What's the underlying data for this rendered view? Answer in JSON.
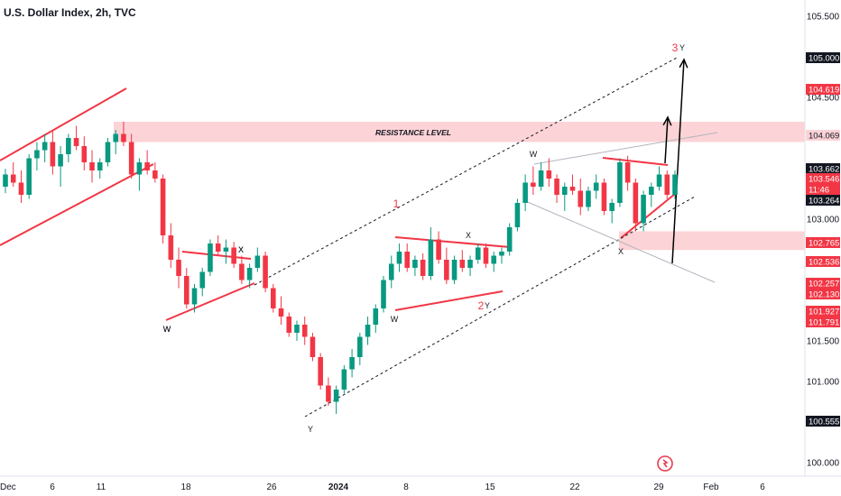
{
  "header": {
    "title": "U.S. Dollar Index, 2h, TVC"
  },
  "chart_data": {
    "type": "candlestick",
    "instrument": "U.S. Dollar Index",
    "timeframe": "2h",
    "source": "TVC",
    "ylim": [
      100.0,
      105.6
    ],
    "y_ticks": [
      "105.500",
      "104.500",
      "103.000",
      "101.500",
      "101.000",
      "100.000"
    ],
    "x_ticks": [
      "Dec",
      "6",
      "11",
      "18",
      "26",
      "2024",
      "8",
      "15",
      "22",
      "29",
      "Feb",
      "6"
    ],
    "price_labels": [
      {
        "value": "105.000",
        "style": "dark"
      },
      {
        "value": "104.619",
        "style": "red"
      },
      {
        "value": "104.069",
        "style": "pink"
      },
      {
        "value": "103.662",
        "style": "dark"
      },
      {
        "value": "103.546",
        "style": "red"
      },
      {
        "value": "11:46",
        "style": "red"
      },
      {
        "value": "103.264",
        "style": "dark"
      },
      {
        "value": "102.765",
        "style": "red"
      },
      {
        "value": "102.536",
        "style": "red"
      },
      {
        "value": "102.257",
        "style": "red"
      },
      {
        "value": "102.130",
        "style": "red"
      },
      {
        "value": "101.927",
        "style": "red"
      },
      {
        "value": "101.791",
        "style": "red"
      },
      {
        "value": "100.555",
        "style": "dark"
      }
    ],
    "zones": [
      {
        "label": "RESISTANCE LEVEL",
        "low": 103.95,
        "high": 104.2
      },
      {
        "label": "",
        "low": 102.62,
        "high": 102.85
      }
    ],
    "wave_labels": [
      "W",
      "X",
      "W",
      "X",
      "Y",
      "1",
      "W",
      "X",
      "2",
      "Y",
      "W",
      "X",
      "3",
      "Y"
    ],
    "candles": [
      [
        103.4,
        103.62,
        103.32,
        103.55
      ],
      [
        103.55,
        103.7,
        103.4,
        103.45
      ],
      [
        103.45,
        103.6,
        103.2,
        103.3
      ],
      [
        103.3,
        103.8,
        103.25,
        103.75
      ],
      [
        103.75,
        103.95,
        103.6,
        103.85
      ],
      [
        103.85,
        104.05,
        103.7,
        103.95
      ],
      [
        103.95,
        104.1,
        103.55,
        103.65
      ],
      [
        103.65,
        103.9,
        103.4,
        103.8
      ],
      [
        103.8,
        104.05,
        103.7,
        104.0
      ],
      [
        104.0,
        104.15,
        103.85,
        103.9
      ],
      [
        103.9,
        104.02,
        103.6,
        103.7
      ],
      [
        103.7,
        103.85,
        103.45,
        103.6
      ],
      [
        103.6,
        103.75,
        103.5,
        103.7
      ],
      [
        103.7,
        104.0,
        103.65,
        103.95
      ],
      [
        103.95,
        104.1,
        103.8,
        104.05
      ],
      [
        104.05,
        104.2,
        103.9,
        103.95
      ],
      [
        103.95,
        104.05,
        103.5,
        103.55
      ],
      [
        103.55,
        103.75,
        103.35,
        103.7
      ],
      [
        103.7,
        103.85,
        103.55,
        103.6
      ],
      [
        103.6,
        103.7,
        103.45,
        103.5
      ],
      [
        103.5,
        103.55,
        102.7,
        102.8
      ],
      [
        102.8,
        102.95,
        102.4,
        102.5
      ],
      [
        102.5,
        102.65,
        102.15,
        102.3
      ],
      [
        102.3,
        102.4,
        101.9,
        101.95
      ],
      [
        101.95,
        102.2,
        101.85,
        102.15
      ],
      [
        102.15,
        102.4,
        102.05,
        102.35
      ],
      [
        102.35,
        102.75,
        102.3,
        102.7
      ],
      [
        102.7,
        102.8,
        102.55,
        102.6
      ],
      [
        102.6,
        102.75,
        102.45,
        102.65
      ],
      [
        102.65,
        102.72,
        102.4,
        102.45
      ],
      [
        102.45,
        102.55,
        102.2,
        102.25
      ],
      [
        102.25,
        102.45,
        102.15,
        102.4
      ],
      [
        102.4,
        102.65,
        102.35,
        102.55
      ],
      [
        102.55,
        102.6,
        102.1,
        102.15
      ],
      [
        102.15,
        102.2,
        101.85,
        101.9
      ],
      [
        101.9,
        102.05,
        101.7,
        101.8
      ],
      [
        101.8,
        101.85,
        101.55,
        101.6
      ],
      [
        101.6,
        101.75,
        101.5,
        101.7
      ],
      [
        101.7,
        101.8,
        101.45,
        101.55
      ],
      [
        101.55,
        101.6,
        101.25,
        101.3
      ],
      [
        101.3,
        101.35,
        100.9,
        100.95
      ],
      [
        100.95,
        101.05,
        100.7,
        100.75
      ],
      [
        100.75,
        100.95,
        100.6,
        100.9
      ],
      [
        100.9,
        101.2,
        100.85,
        101.15
      ],
      [
        101.15,
        101.4,
        101.05,
        101.3
      ],
      [
        101.3,
        101.6,
        101.2,
        101.55
      ],
      [
        101.55,
        101.8,
        101.45,
        101.7
      ],
      [
        101.7,
        101.95,
        101.6,
        101.9
      ],
      [
        101.9,
        102.3,
        101.85,
        102.25
      ],
      [
        102.25,
        102.55,
        102.15,
        102.45
      ],
      [
        102.45,
        102.7,
        102.35,
        102.6
      ],
      [
        102.6,
        102.7,
        102.35,
        102.4
      ],
      [
        102.4,
        102.55,
        102.3,
        102.5
      ],
      [
        102.5,
        102.58,
        102.25,
        102.3
      ],
      [
        102.3,
        102.9,
        102.25,
        102.75
      ],
      [
        102.75,
        102.85,
        102.45,
        102.5
      ],
      [
        102.5,
        102.65,
        102.2,
        102.25
      ],
      [
        102.25,
        102.55,
        102.2,
        102.5
      ],
      [
        102.5,
        102.62,
        102.35,
        102.4
      ],
      [
        102.4,
        102.55,
        102.3,
        102.5
      ],
      [
        102.5,
        102.7,
        102.45,
        102.65
      ],
      [
        102.65,
        102.7,
        102.4,
        102.45
      ],
      [
        102.45,
        102.6,
        102.35,
        102.55
      ],
      [
        102.55,
        102.65,
        102.45,
        102.6
      ],
      [
        102.6,
        102.95,
        102.55,
        102.9
      ],
      [
        102.9,
        103.25,
        102.85,
        103.2
      ],
      [
        103.2,
        103.55,
        103.1,
        103.45
      ],
      [
        103.45,
        103.65,
        103.3,
        103.4
      ],
      [
        103.4,
        103.7,
        103.35,
        103.6
      ],
      [
        103.6,
        103.75,
        103.4,
        103.5
      ],
      [
        103.5,
        103.55,
        103.2,
        103.3
      ],
      [
        103.3,
        103.45,
        103.1,
        103.4
      ],
      [
        103.4,
        103.55,
        103.3,
        103.35
      ],
      [
        103.35,
        103.5,
        103.05,
        103.15
      ],
      [
        103.15,
        103.4,
        103.1,
        103.35
      ],
      [
        103.35,
        103.55,
        103.25,
        103.45
      ],
      [
        103.45,
        103.5,
        103.05,
        103.1
      ],
      [
        103.1,
        103.25,
        102.95,
        103.2
      ],
      [
        103.2,
        103.75,
        103.15,
        103.7
      ],
      [
        103.7,
        103.78,
        103.35,
        103.45
      ],
      [
        103.45,
        103.5,
        102.85,
        102.95
      ],
      [
        102.95,
        103.35,
        102.85,
        103.3
      ],
      [
        103.3,
        103.45,
        103.15,
        103.4
      ],
      [
        103.4,
        103.65,
        103.35,
        103.55
      ],
      [
        103.55,
        103.6,
        103.25,
        103.3
      ],
      [
        103.3,
        103.6,
        103.25,
        103.55
      ]
    ]
  }
}
